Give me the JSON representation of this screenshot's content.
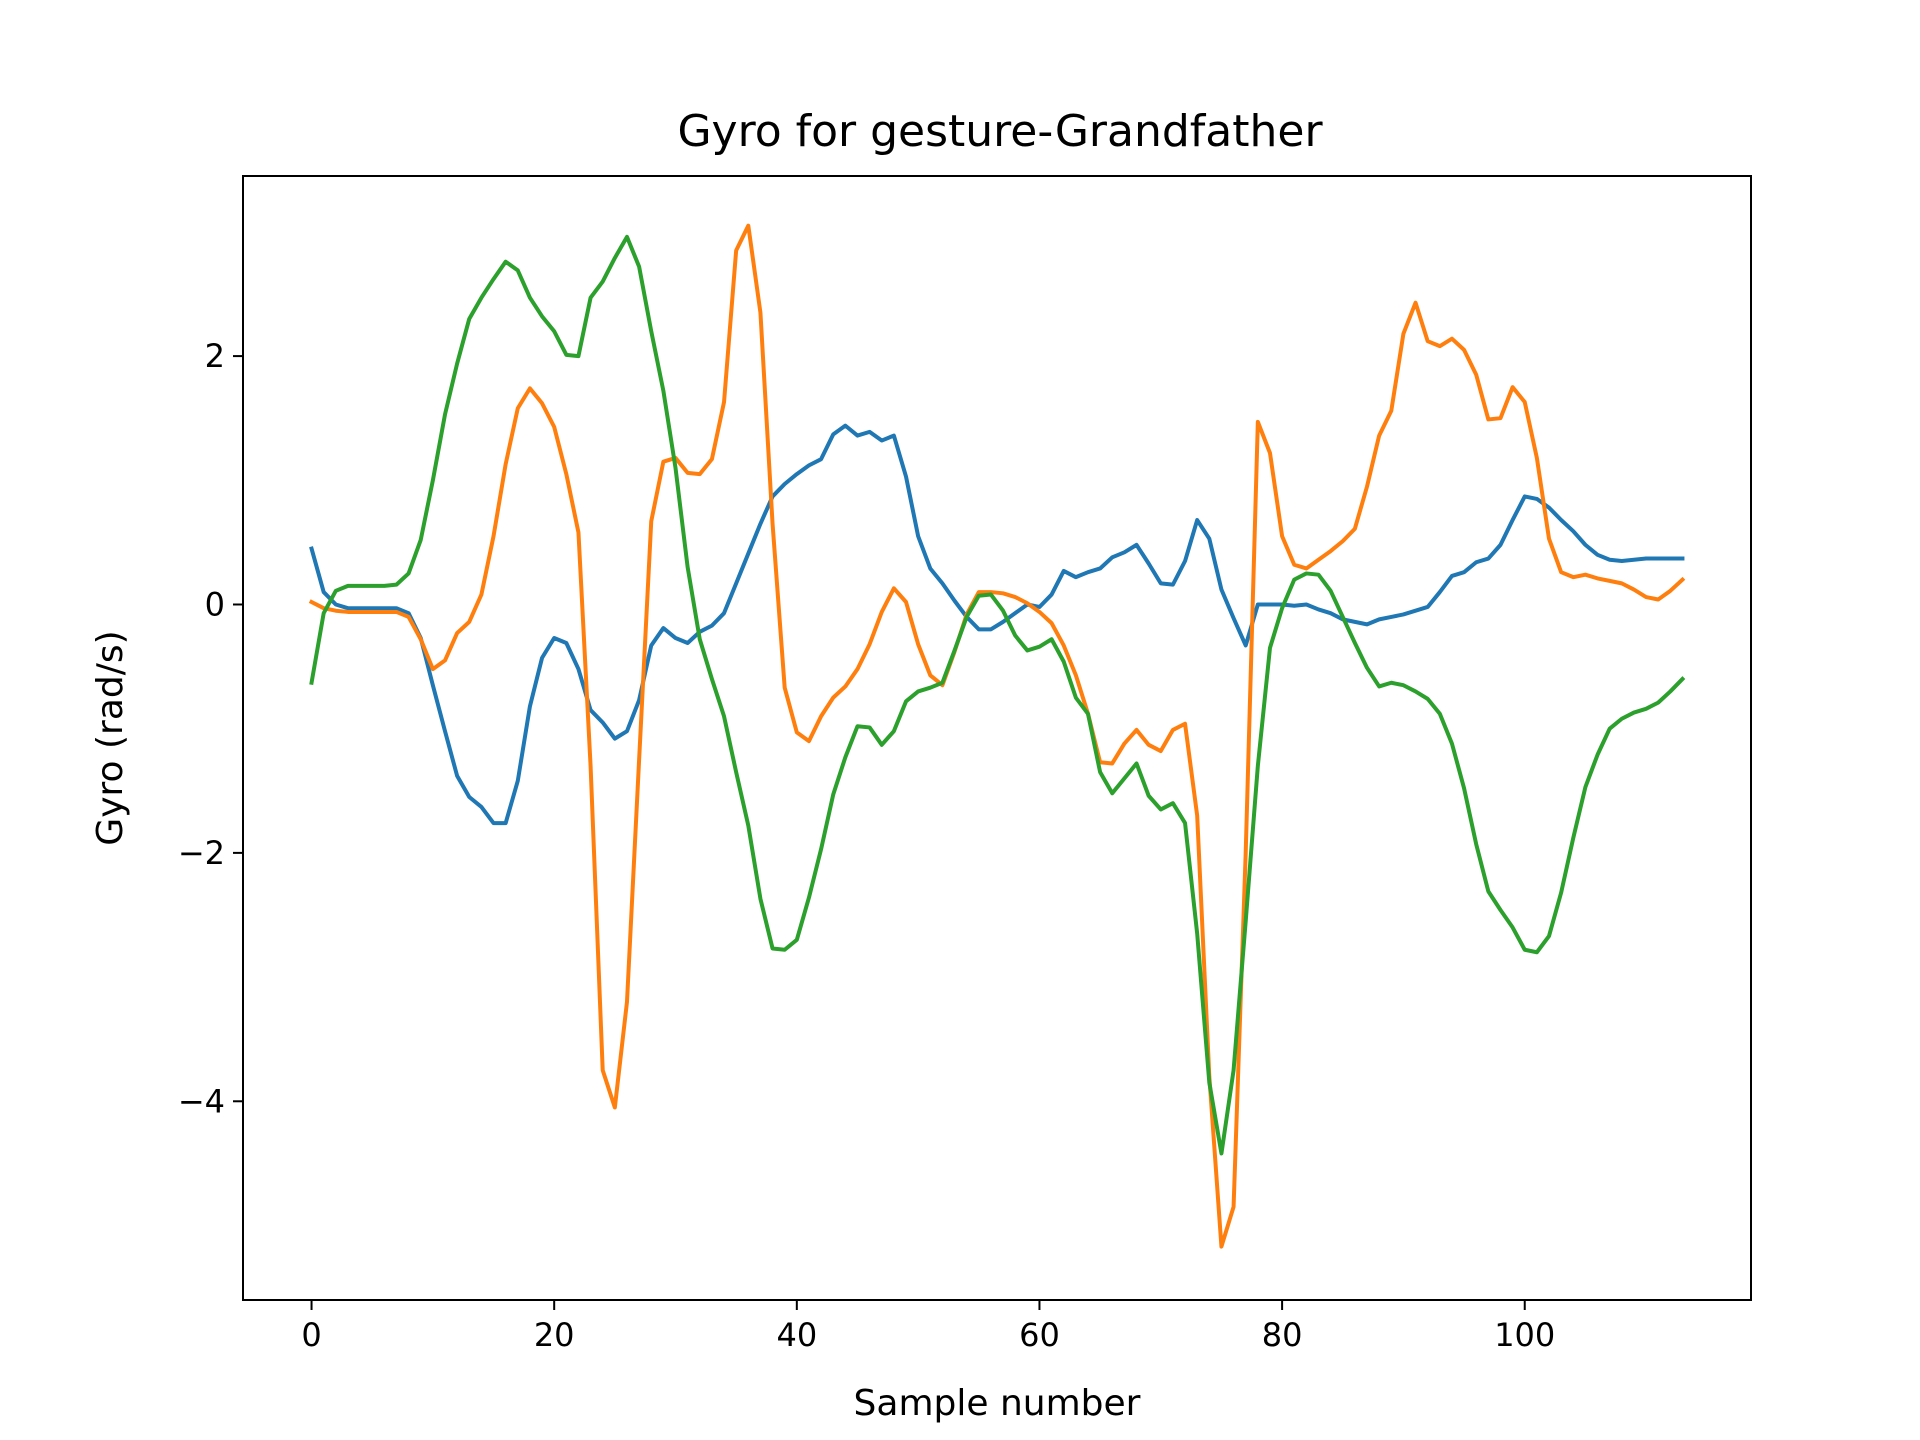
{
  "chart_data": {
    "type": "line",
    "title": "Gyro for gesture-Grandfather",
    "xlabel": "Sample number",
    "ylabel": "Gyro  (rad/s)",
    "xlim": [
      -5.65,
      118.65
    ],
    "ylim": [
      -5.6,
      3.45
    ],
    "xticks": [
      0,
      20,
      40,
      60,
      80,
      100
    ],
    "xtick_labels": [
      "0",
      "20",
      "40",
      "60",
      "80",
      "100"
    ],
    "yticks": [
      -4,
      -2,
      0,
      2
    ],
    "ytick_labels": [
      "−4",
      "−2",
      "0",
      "2"
    ],
    "grid": false,
    "legend": "none",
    "x": [
      0,
      1,
      2,
      3,
      4,
      5,
      6,
      7,
      8,
      9,
      10,
      11,
      12,
      13,
      14,
      15,
      16,
      17,
      18,
      19,
      20,
      21,
      22,
      23,
      24,
      25,
      26,
      27,
      28,
      29,
      30,
      31,
      32,
      33,
      34,
      35,
      36,
      37,
      38,
      39,
      40,
      41,
      42,
      43,
      44,
      45,
      46,
      47,
      48,
      49,
      50,
      51,
      52,
      53,
      54,
      55,
      56,
      57,
      58,
      59,
      60,
      61,
      62,
      63,
      64,
      65,
      66,
      67,
      68,
      69,
      70,
      71,
      72,
      73,
      74,
      75,
      76,
      77,
      78,
      79,
      80,
      81,
      82,
      83,
      84,
      85,
      86,
      87,
      88,
      89,
      90,
      91,
      92,
      93,
      94,
      95,
      96,
      97,
      98,
      99,
      100,
      101,
      102,
      103,
      104,
      105,
      106,
      107,
      108,
      109,
      110,
      111,
      112,
      113
    ],
    "series": [
      {
        "color": "#1f77b4",
        "values": [
          0.45,
          0.1,
          0.0,
          -0.03,
          -0.03,
          -0.03,
          -0.03,
          -0.03,
          -0.07,
          -0.27,
          -0.65,
          -1.02,
          -1.38,
          -1.55,
          -1.63,
          -1.76,
          -1.76,
          -1.42,
          -0.82,
          -0.43,
          -0.27,
          -0.31,
          -0.52,
          -0.85,
          -0.95,
          -1.08,
          -1.02,
          -0.77,
          -0.33,
          -0.19,
          -0.27,
          -0.31,
          -0.22,
          -0.17,
          -0.07,
          0.17,
          0.41,
          0.65,
          0.87,
          0.97,
          1.05,
          1.12,
          1.17,
          1.37,
          1.44,
          1.36,
          1.39,
          1.32,
          1.36,
          1.03,
          0.55,
          0.29,
          0.17,
          0.03,
          -0.1,
          -0.2,
          -0.2,
          -0.14,
          -0.07,
          0.0,
          -0.02,
          0.08,
          0.27,
          0.22,
          0.26,
          0.29,
          0.38,
          0.42,
          0.48,
          0.33,
          0.17,
          0.16,
          0.35,
          0.68,
          0.53,
          0.12,
          -0.11,
          -0.33,
          0.0,
          0.0,
          0.0,
          -0.01,
          0.0,
          -0.04,
          -0.07,
          -0.12,
          -0.14,
          -0.16,
          -0.12,
          -0.1,
          -0.08,
          -0.05,
          -0.02,
          0.1,
          0.23,
          0.26,
          0.34,
          0.37,
          0.48,
          0.68,
          0.87,
          0.85,
          0.78,
          0.68,
          0.59,
          0.48,
          0.4,
          0.36,
          0.35,
          0.36,
          0.37,
          0.37,
          0.37,
          0.37
        ]
      },
      {
        "color": "#ff7f0e",
        "values": [
          0.02,
          -0.03,
          -0.05,
          -0.06,
          -0.06,
          -0.06,
          -0.06,
          -0.06,
          -0.1,
          -0.28,
          -0.52,
          -0.45,
          -0.23,
          -0.14,
          0.08,
          0.55,
          1.13,
          1.58,
          1.74,
          1.62,
          1.43,
          1.05,
          0.58,
          -1.3,
          -3.75,
          -4.05,
          -3.2,
          -1.25,
          0.67,
          1.15,
          1.18,
          1.06,
          1.05,
          1.17,
          1.63,
          2.85,
          3.05,
          2.35,
          0.65,
          -0.67,
          -1.03,
          -1.1,
          -0.9,
          -0.75,
          -0.66,
          -0.52,
          -0.32,
          -0.06,
          0.13,
          0.02,
          -0.32,
          -0.57,
          -0.65,
          -0.38,
          -0.08,
          0.1,
          0.1,
          0.09,
          0.06,
          0.01,
          -0.06,
          -0.15,
          -0.33,
          -0.57,
          -0.88,
          -1.27,
          -1.28,
          -1.12,
          -1.01,
          -1.13,
          -1.18,
          -1.01,
          -0.96,
          -1.7,
          -3.8,
          -5.17,
          -4.85,
          -2.0,
          1.47,
          1.22,
          0.55,
          0.32,
          0.29,
          0.36,
          0.43,
          0.51,
          0.61,
          0.95,
          1.36,
          1.56,
          2.18,
          2.43,
          2.12,
          2.08,
          2.14,
          2.05,
          1.85,
          1.49,
          1.5,
          1.75,
          1.63,
          1.18,
          0.53,
          0.26,
          0.22,
          0.24,
          0.21,
          0.19,
          0.17,
          0.12,
          0.06,
          0.04,
          0.11,
          0.2
        ]
      },
      {
        "color": "#2ca02c",
        "values": [
          -0.63,
          -0.07,
          0.11,
          0.15,
          0.15,
          0.15,
          0.15,
          0.16,
          0.25,
          0.52,
          1.0,
          1.53,
          1.94,
          2.3,
          2.47,
          2.62,
          2.76,
          2.69,
          2.47,
          2.32,
          2.2,
          2.01,
          2.0,
          2.47,
          2.6,
          2.79,
          2.96,
          2.72,
          2.2,
          1.72,
          1.1,
          0.3,
          -0.28,
          -0.6,
          -0.9,
          -1.35,
          -1.78,
          -2.37,
          -2.77,
          -2.78,
          -2.7,
          -2.36,
          -1.97,
          -1.53,
          -1.23,
          -0.98,
          -0.99,
          -1.13,
          -1.02,
          -0.78,
          -0.7,
          -0.67,
          -0.63,
          -0.37,
          -0.1,
          0.07,
          0.08,
          -0.05,
          -0.25,
          -0.37,
          -0.34,
          -0.28,
          -0.46,
          -0.75,
          -0.88,
          -1.35,
          -1.52,
          -1.4,
          -1.28,
          -1.54,
          -1.65,
          -1.6,
          -1.76,
          -2.65,
          -3.85,
          -4.42,
          -3.75,
          -2.55,
          -1.3,
          -0.35,
          -0.03,
          0.2,
          0.25,
          0.24,
          0.11,
          -0.1,
          -0.31,
          -0.51,
          -0.66,
          -0.63,
          -0.65,
          -0.7,
          -0.76,
          -0.88,
          -1.12,
          -1.48,
          -1.93,
          -2.31,
          -2.46,
          -2.6,
          -2.78,
          -2.8,
          -2.67,
          -2.32,
          -1.88,
          -1.47,
          -1.21,
          -1.0,
          -0.92,
          -0.87,
          -0.84,
          -0.79,
          -0.7,
          -0.6
        ]
      }
    ]
  }
}
